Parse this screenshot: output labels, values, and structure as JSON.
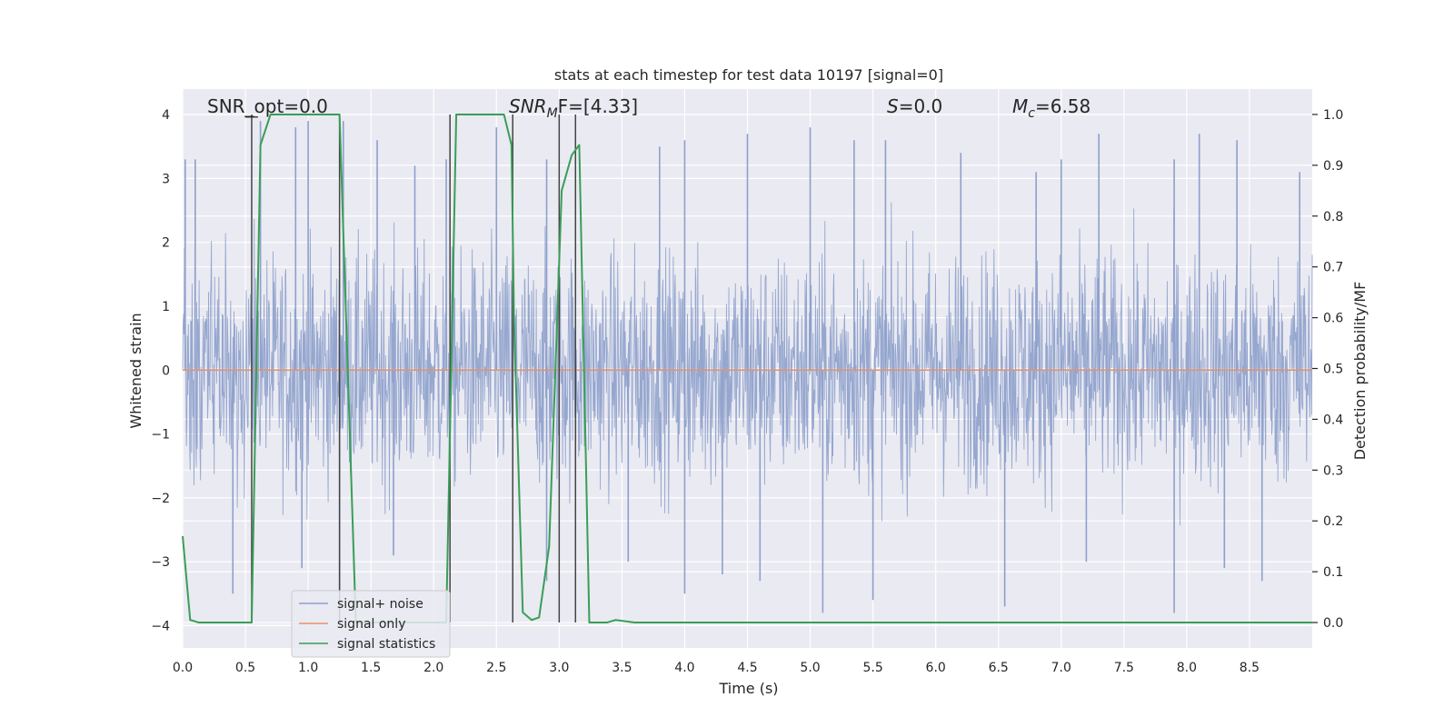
{
  "chart_data": {
    "type": "line",
    "title": "stats at each timestep for test data 10197 [signal=0]",
    "xlabel": "Time (s)",
    "ylabel": "Whitened strain",
    "y2label": "Detection probability/MF",
    "xlim": [
      0.0,
      9.0
    ],
    "ylim": [
      -4.35,
      4.4
    ],
    "y2lim": [
      -0.05,
      1.05
    ],
    "x_ticks": [
      0.0,
      0.5,
      1.0,
      1.5,
      2.0,
      2.5,
      3.0,
      3.5,
      4.0,
      4.5,
      5.0,
      5.5,
      6.0,
      6.5,
      7.0,
      7.5,
      8.0,
      8.5
    ],
    "x_tick_labels": [
      "0.0",
      "0.5",
      "1.0",
      "1.5",
      "2.0",
      "2.5",
      "3.0",
      "3.5",
      "4.0",
      "4.5",
      "5.0",
      "5.5",
      "6.0",
      "6.5",
      "7.0",
      "7.5",
      "8.0",
      "8.5"
    ],
    "y_ticks": [
      -4,
      -3,
      -2,
      -1,
      0,
      1,
      2,
      3,
      4
    ],
    "y_tick_labels": [
      "−4",
      "−3",
      "−2",
      "−1",
      "0",
      "1",
      "2",
      "3",
      "4"
    ],
    "y2_ticks": [
      0.0,
      0.1,
      0.2,
      0.3,
      0.4,
      0.5,
      0.6,
      0.7,
      0.8,
      0.9,
      1.0
    ],
    "y2_tick_labels": [
      "0.0",
      "0.1",
      "0.2",
      "0.3",
      "0.4",
      "0.5",
      "0.6",
      "0.7",
      "0.8",
      "0.9",
      "1.0"
    ],
    "grid": true,
    "legend_position": "lower-left",
    "annotations": {
      "snr_opt": "SNR_opt=0.0",
      "snr_mf_main": "SNR",
      "snr_mf_sub": "M",
      "snr_mf_rest": "F=[4.33]",
      "s_main": "S",
      "s_rest": "=0.0",
      "mc_main": "M",
      "mc_sub": "c",
      "mc_rest": "=6.58"
    },
    "colors": {
      "noise": "#8da0cb",
      "signal": "#e5926b",
      "stats": "#3a9e56",
      "vlines": "#444444",
      "background": "#eaeaf2",
      "grid": "#ffffff"
    },
    "series": [
      {
        "name": "signal+ noise",
        "axis": "left",
        "description_values": "dense noise, typical range ±2, peaks near ±3.5",
        "envelope_peaks_x": [
          0.02,
          0.1,
          0.62,
          0.9,
          1.0,
          1.28,
          1.55,
          1.85,
          2.1,
          2.5,
          2.9,
          3.8,
          4.0,
          4.5,
          5.0,
          5.35,
          5.6,
          6.2,
          6.8,
          7.0,
          7.3,
          7.9,
          8.1,
          8.4,
          8.9
        ],
        "envelope_peaks_y": [
          3.3,
          3.3,
          3.9,
          3.8,
          3.9,
          3.9,
          3.6,
          3.2,
          3.3,
          3.8,
          3.3,
          3.5,
          3.6,
          3.7,
          3.8,
          3.6,
          3.6,
          3.4,
          3.1,
          3.3,
          3.7,
          3.3,
          3.7,
          3.6,
          3.1
        ],
        "envelope_troughs_x": [
          0.4,
          0.95,
          1.25,
          1.68,
          2.9,
          3.55,
          4.0,
          4.3,
          4.6,
          5.1,
          5.5,
          6.55,
          7.2,
          7.9,
          8.3,
          8.6
        ],
        "envelope_troughs_y": [
          -3.5,
          -3.1,
          -3.5,
          -2.9,
          -3.3,
          -3.0,
          -3.5,
          -3.2,
          -3.3,
          -3.8,
          -3.6,
          -3.7,
          -3.0,
          -3.8,
          -3.1,
          -3.3
        ]
      },
      {
        "name": "signal only",
        "axis": "left",
        "x": [
          0.0,
          9.0
        ],
        "y": [
          0.0,
          0.0
        ]
      },
      {
        "name": "signal statistics",
        "axis": "right",
        "x": [
          0.0,
          0.06,
          0.13,
          0.55,
          0.62,
          0.7,
          1.25,
          1.38,
          1.45,
          2.1,
          2.18,
          2.22,
          2.56,
          2.62,
          2.64,
          2.71,
          2.78,
          2.84,
          2.92,
          3.02,
          3.1,
          3.16,
          3.24,
          3.3,
          3.38,
          3.45,
          3.6,
          9.0
        ],
        "y": [
          0.17,
          0.005,
          0.0,
          0.0,
          0.94,
          1.0,
          1.0,
          0.0,
          0.0,
          0.0,
          1.0,
          1.0,
          1.0,
          0.94,
          0.6,
          0.02,
          0.005,
          0.01,
          0.15,
          0.85,
          0.92,
          0.94,
          0.0,
          0.0,
          0.0,
          0.005,
          0.0,
          0.0
        ]
      }
    ],
    "vertical_lines_x": [
      0.55,
      1.25,
      2.13,
      2.63,
      3.0,
      3.13
    ]
  }
}
